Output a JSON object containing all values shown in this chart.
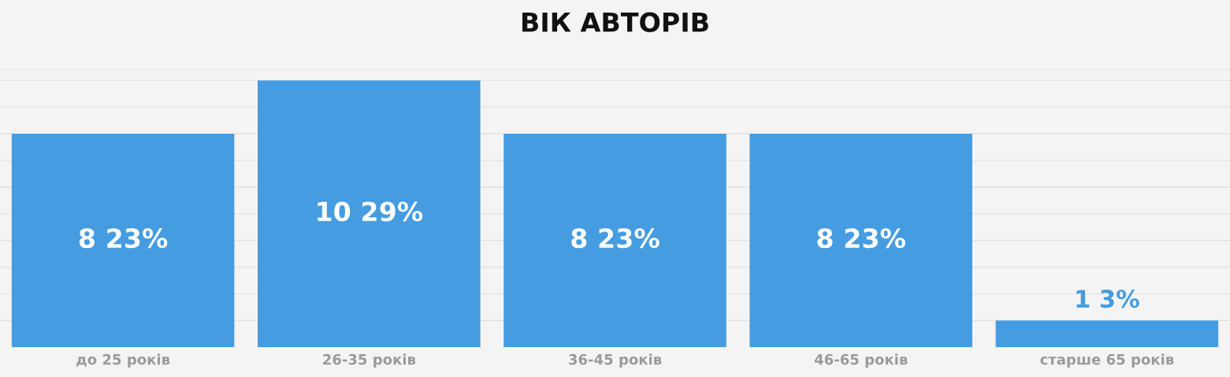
{
  "chart_data": {
    "type": "bar",
    "title": "ВІК АВТОРІВ",
    "categories": [
      "до 25 років",
      "26-35 років",
      "36-45 років",
      "46-65 років",
      "старше 65 років"
    ],
    "values": [
      8,
      10,
      8,
      8,
      1
    ],
    "value_labels": [
      "8 23%",
      "10 29%",
      "8 23%",
      "8 23%",
      "1 3%"
    ],
    "color": "#459ce0",
    "ylim": [
      0,
      10.4
    ],
    "yticks": [
      {
        "value": 1,
        "label": null
      },
      {
        "value": 2,
        "label": null
      },
      {
        "value": 3,
        "label": null
      },
      {
        "value": 4,
        "label": null
      },
      {
        "value": 5,
        "label": null
      },
      {
        "value": 6,
        "label": null
      },
      {
        "value": 7,
        "label": null
      },
      {
        "value": 8,
        "label": null
      },
      {
        "value": 9,
        "label": null
      },
      {
        "value": 10,
        "label": null
      },
      {
        "value": 10.4,
        "label": null
      }
    ],
    "grid": "y",
    "tick_labels": "x"
  }
}
